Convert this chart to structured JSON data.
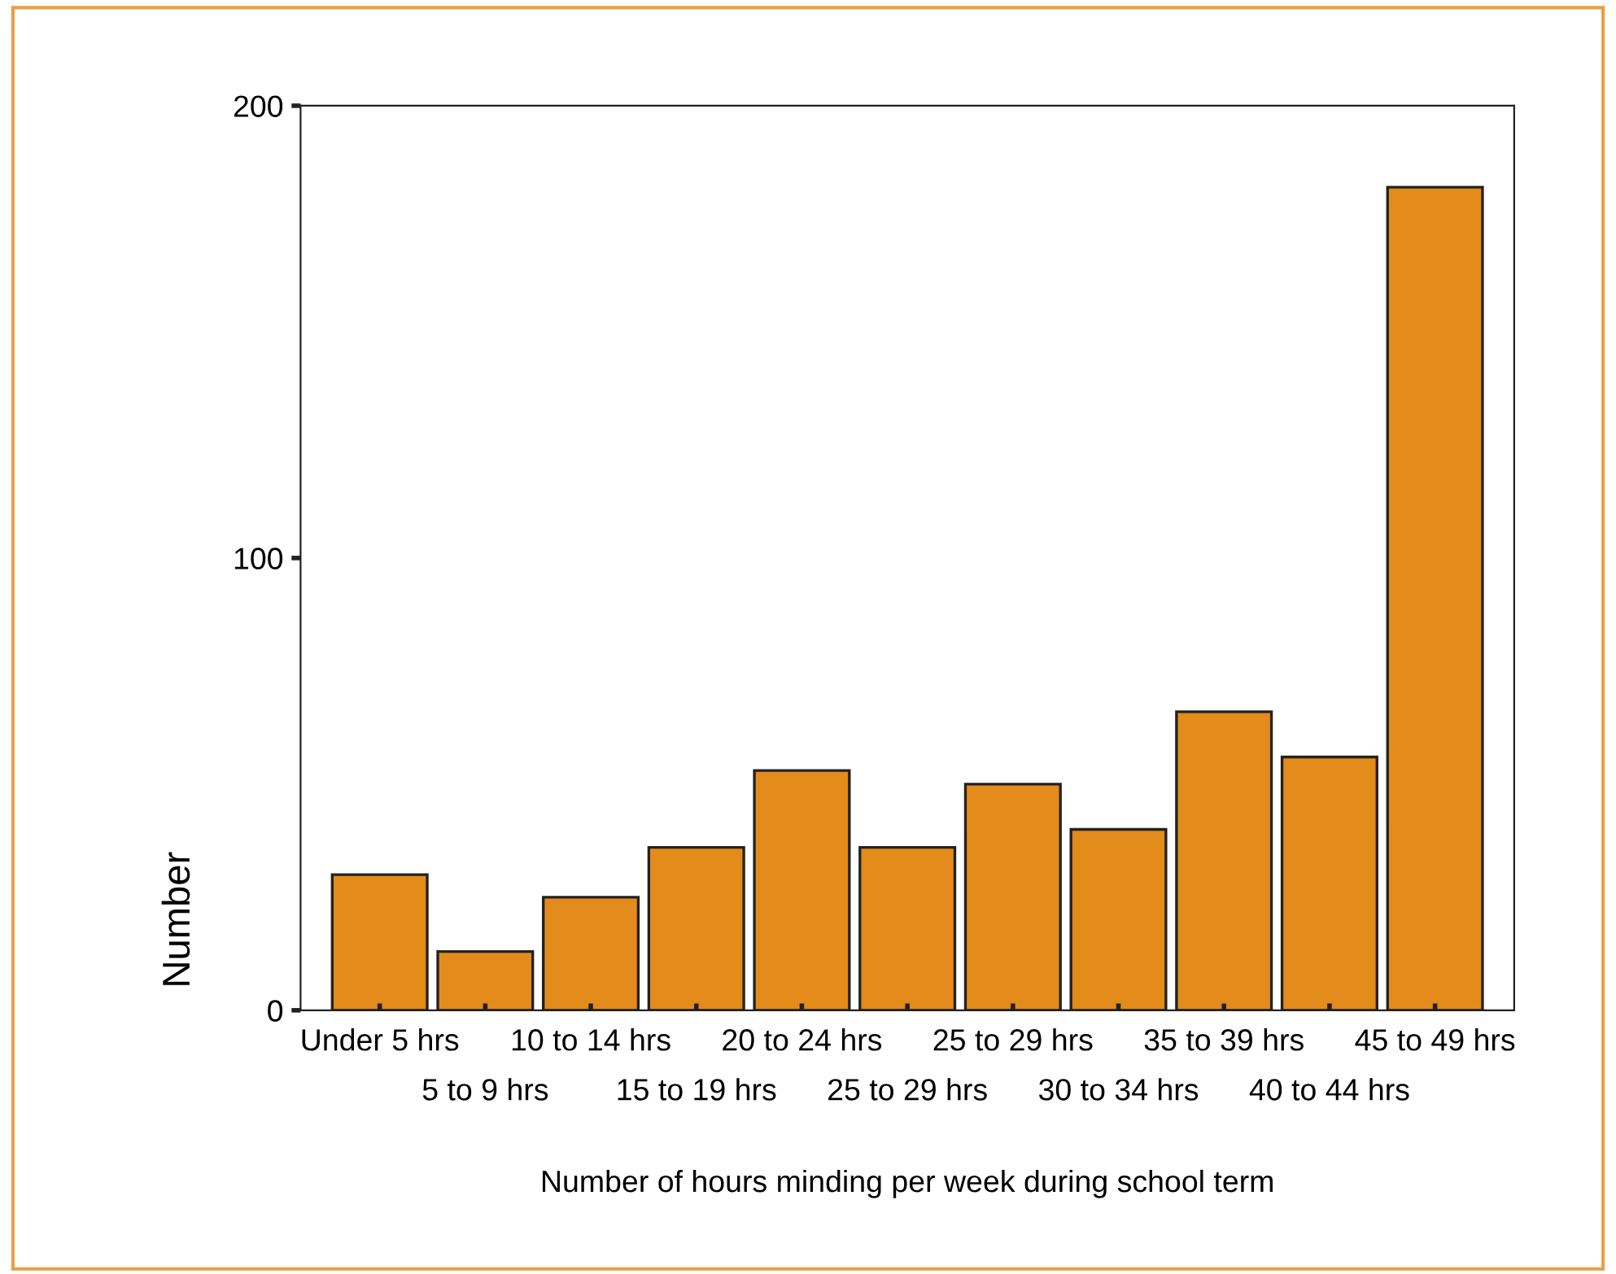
{
  "chart_data": {
    "type": "bar",
    "xlabel": "Number of hours minding per week during school term",
    "ylabel": "Number",
    "categories": [
      "Under 5 hrs",
      "5 to 9 hrs",
      "10 to 14 hrs",
      "15 to 19 hrs",
      "20 to 24 hrs",
      "25 to 29 hrs",
      "25 to 29 hrs",
      "30 to 34 hrs",
      "35 to 39 hrs",
      "40 to 44 hrs",
      "45 to 49 hrs"
    ],
    "values": [
      30,
      13,
      25,
      36,
      53,
      36,
      50,
      40,
      66,
      56,
      182
    ],
    "color": "#e38b1b",
    "ylim": [
      0,
      200
    ],
    "yticks": [
      0,
      100,
      200
    ],
    "grid": false,
    "legend": false
  }
}
